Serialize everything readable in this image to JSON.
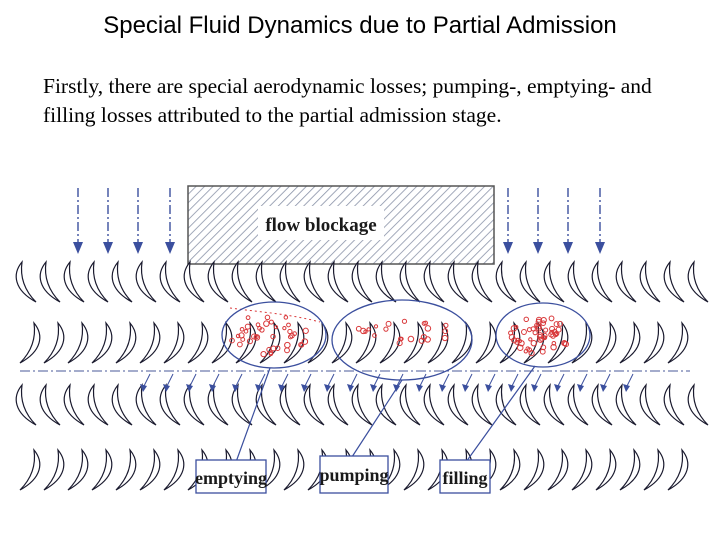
{
  "slide": {
    "title": "Special Fluid Dynamics due to Partial Admission",
    "body": "Firstly, there are special aerodynamic losses; pumping-, emptying- and filling losses attributed to the partial admission stage."
  },
  "diagram": {
    "blockage_label": "flow blockage",
    "labels": {
      "emptying": "emptying",
      "pumping": "pumping",
      "filling": "filling"
    },
    "colors": {
      "arrow": "#3b4f9e",
      "blade": "#1a1a2e",
      "loss_marks": "#d9383a",
      "hatch": "#6e7a93"
    }
  }
}
